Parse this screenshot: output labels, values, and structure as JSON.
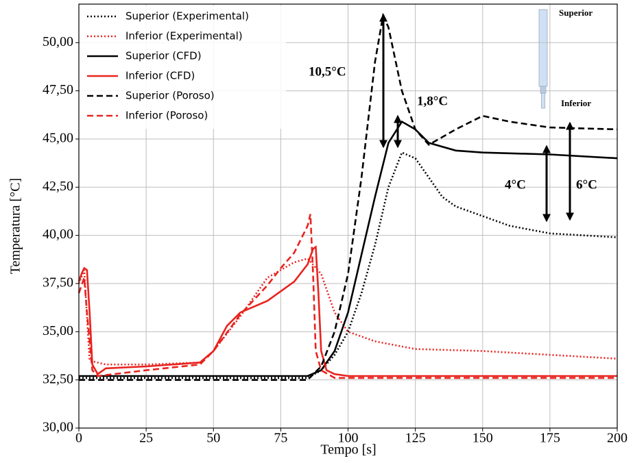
{
  "chart_data": {
    "type": "line",
    "x_label": "Tempo [s]",
    "y_label": "Temperatura [°C]",
    "xlim": [
      0,
      200
    ],
    "ylim": [
      30,
      52
    ],
    "xticks": [
      0,
      25,
      50,
      75,
      100,
      125,
      150,
      175,
      200
    ],
    "yticks": [
      {
        "value": 30,
        "label": "30,00"
      },
      {
        "value": 32.5,
        "label": "32,50"
      },
      {
        "value": 35,
        "label": "35,00"
      },
      {
        "value": 37.5,
        "label": "37,50"
      },
      {
        "value": 40,
        "label": "40,00"
      },
      {
        "value": 42.5,
        "label": "42,50"
      },
      {
        "value": 45,
        "label": "45,00"
      },
      {
        "value": 47.5,
        "label": "47,50"
      },
      {
        "value": 50,
        "label": "50,00"
      }
    ],
    "grid": true,
    "legend": "upper left",
    "series": [
      {
        "name": "Superior (Experimental)",
        "color": "#000000",
        "style": "dotted",
        "x": [
          0,
          25,
          50,
          85,
          90,
          95,
          100,
          105,
          110,
          115,
          120,
          125,
          130,
          135,
          140,
          150,
          160,
          175,
          200
        ],
        "values": [
          32.6,
          32.6,
          32.6,
          32.6,
          33,
          33.8,
          35,
          37,
          39.5,
          42.5,
          44.3,
          44,
          43,
          42,
          41.5,
          41,
          40.5,
          40.1,
          39.9
        ]
      },
      {
        "name": "Inferior (Experimental)",
        "color": "#e8231e",
        "style": "dotted",
        "x": [
          0,
          2,
          4,
          10,
          25,
          45,
          50,
          60,
          70,
          80,
          85,
          90,
          95,
          100,
          110,
          125,
          150,
          175,
          200
        ],
        "values": [
          37.5,
          38.2,
          33.5,
          33.3,
          33.3,
          33.4,
          34,
          35.8,
          37.8,
          38.6,
          38.8,
          38,
          36,
          35,
          34.5,
          34.1,
          34,
          33.8,
          33.6
        ]
      },
      {
        "name": "Superior (CFD)",
        "color": "#000000",
        "style": "solid",
        "x": [
          0,
          85,
          90,
          95,
          100,
          105,
          110,
          115,
          120,
          125,
          130,
          140,
          150,
          175,
          200
        ],
        "values": [
          32.7,
          32.7,
          33,
          34,
          36,
          39,
          42,
          44.8,
          45.9,
          45.5,
          44.8,
          44.4,
          44.3,
          44.2,
          44
        ]
      },
      {
        "name": "Inferior (CFD)",
        "color": "#e8231e",
        "style": "solid",
        "x": [
          0,
          1,
          2,
          3,
          4,
          5,
          7,
          10,
          25,
          45,
          50,
          55,
          60,
          70,
          80,
          85,
          87,
          88,
          89,
          90,
          92,
          95,
          100,
          200
        ],
        "values": [
          37.6,
          38,
          38.3,
          38.2,
          36,
          33.3,
          32.8,
          33.1,
          33.2,
          33.4,
          34,
          35.3,
          36,
          36.6,
          37.6,
          38.5,
          39.3,
          39.4,
          37,
          34,
          33,
          32.8,
          32.7,
          32.7
        ]
      },
      {
        "name": "Superior (Poroso)",
        "color": "#000000",
        "style": "dashed",
        "x": [
          0,
          85,
          90,
          95,
          100,
          105,
          110,
          113,
          115,
          120,
          125,
          130,
          140,
          150,
          160,
          175,
          200
        ],
        "values": [
          32.5,
          32.5,
          33.2,
          35,
          38,
          43,
          49,
          51.4,
          50.8,
          47.5,
          45.5,
          44.7,
          45.5,
          46.2,
          45.9,
          45.6,
          45.5
        ]
      },
      {
        "name": "Inferior (Poroso)",
        "color": "#e8231e",
        "style": "dashed",
        "x": [
          0,
          2,
          3,
          5,
          7,
          25,
          45,
          50,
          60,
          70,
          75,
          80,
          85,
          86,
          87,
          88,
          90,
          95,
          200
        ],
        "values": [
          37,
          37.8,
          36,
          33,
          32.7,
          33,
          33.3,
          34,
          35.9,
          37.4,
          38.3,
          39.1,
          40.5,
          41.1,
          38,
          34,
          33,
          32.6,
          32.6
        ]
      }
    ],
    "annotations": [
      "10,5°C",
      "1,8°C",
      "4°C",
      "6°C"
    ],
    "inset_labels": [
      "Superior",
      "Inferior"
    ]
  }
}
